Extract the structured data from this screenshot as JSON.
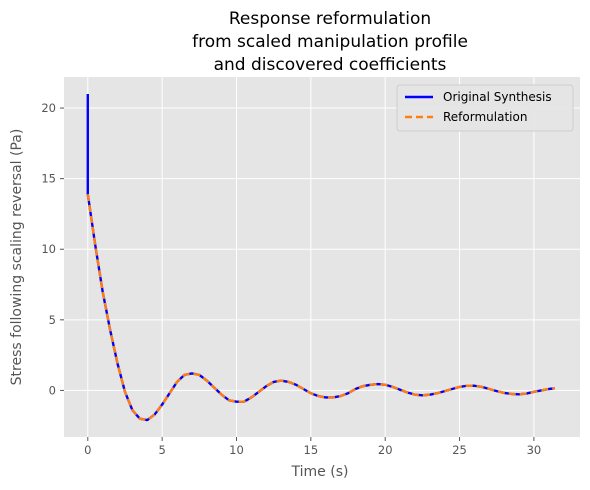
{
  "chart_data": {
    "type": "line",
    "title_lines": [
      "Response reformulation",
      "from scaled manipulation profile",
      "and discovered coefficients"
    ],
    "xlabel": "Time (s)",
    "ylabel": "Stress following scaling reversal (Pa)",
    "xlim": [
      -1.6,
      33.1
    ],
    "ylim": [
      -3.3,
      22.2
    ],
    "xticks": [
      0,
      5,
      10,
      15,
      20,
      25,
      30
    ],
    "yticks": [
      0,
      5,
      10,
      15,
      20
    ],
    "grid": true,
    "legend_position": "top-right",
    "series": [
      {
        "name": "Original Synthesis",
        "color": "#0000ff",
        "style": "solid",
        "x": [
          0,
          0,
          0.5,
          1,
          1.5,
          2,
          2.5,
          3,
          3.5,
          4,
          4.5,
          5,
          5.5,
          6,
          6.5,
          7,
          7.5,
          8,
          8.5,
          9,
          9.5,
          10,
          10.5,
          11,
          11.5,
          12,
          12.5,
          13,
          13.5,
          14,
          14.5,
          15,
          15.5,
          16,
          16.5,
          17,
          17.5,
          18,
          18.5,
          19,
          19.5,
          20,
          20.5,
          21,
          21.5,
          22,
          22.5,
          23,
          23.5,
          24,
          24.5,
          25,
          25.5,
          26,
          26.5,
          27,
          27.5,
          28,
          28.5,
          29,
          29.5,
          30,
          30.5,
          31,
          31.4
        ],
        "y": [
          21,
          13.9,
          10.3,
          7,
          4.3,
          1.9,
          -0.1,
          -1.4,
          -2,
          -2.1,
          -1.7,
          -1,
          -0.2,
          0.6,
          1.1,
          1.2,
          1.1,
          0.7,
          0.2,
          -0.3,
          -0.7,
          -0.8,
          -0.8,
          -0.5,
          -0.1,
          0.3,
          0.6,
          0.7,
          0.6,
          0.4,
          0.1,
          -0.2,
          -0.4,
          -0.5,
          -0.5,
          -0.4,
          -0.2,
          0.1,
          0.3,
          0.4,
          0.45,
          0.4,
          0.25,
          0.05,
          -0.15,
          -0.3,
          -0.35,
          -0.3,
          -0.2,
          -0.05,
          0.1,
          0.25,
          0.33,
          0.33,
          0.25,
          0.1,
          -0.05,
          -0.18,
          -0.25,
          -0.28,
          -0.22,
          -0.1,
          0,
          0.1,
          0.15
        ]
      },
      {
        "name": "Reformulation",
        "color": "#ff7f0e",
        "style": "dashed",
        "x": [
          0,
          0.5,
          1,
          1.5,
          2,
          2.5,
          3,
          3.5,
          4,
          4.5,
          5,
          5.5,
          6,
          6.5,
          7,
          7.5,
          8,
          8.5,
          9,
          9.5,
          10,
          10.5,
          11,
          11.5,
          12,
          12.5,
          13,
          13.5,
          14,
          14.5,
          15,
          15.5,
          16,
          16.5,
          17,
          17.5,
          18,
          18.5,
          19,
          19.5,
          20,
          20.5,
          21,
          21.5,
          22,
          22.5,
          23,
          23.5,
          24,
          24.5,
          25,
          25.5,
          26,
          26.5,
          27,
          27.5,
          28,
          28.5,
          29,
          29.5,
          30,
          30.5,
          31,
          31.4
        ],
        "y": [
          13.9,
          10.3,
          7,
          4.3,
          1.9,
          -0.1,
          -1.4,
          -2,
          -2.1,
          -1.7,
          -1,
          -0.2,
          0.6,
          1.1,
          1.2,
          1.1,
          0.7,
          0.2,
          -0.3,
          -0.7,
          -0.8,
          -0.8,
          -0.5,
          -0.1,
          0.3,
          0.6,
          0.7,
          0.6,
          0.4,
          0.1,
          -0.2,
          -0.4,
          -0.5,
          -0.5,
          -0.4,
          -0.2,
          0.1,
          0.3,
          0.4,
          0.45,
          0.4,
          0.25,
          0.05,
          -0.15,
          -0.3,
          -0.35,
          -0.3,
          -0.2,
          -0.05,
          0.1,
          0.25,
          0.33,
          0.33,
          0.25,
          0.1,
          -0.05,
          -0.18,
          -0.25,
          -0.28,
          -0.22,
          -0.1,
          0,
          0.1,
          0.15
        ]
      }
    ]
  }
}
